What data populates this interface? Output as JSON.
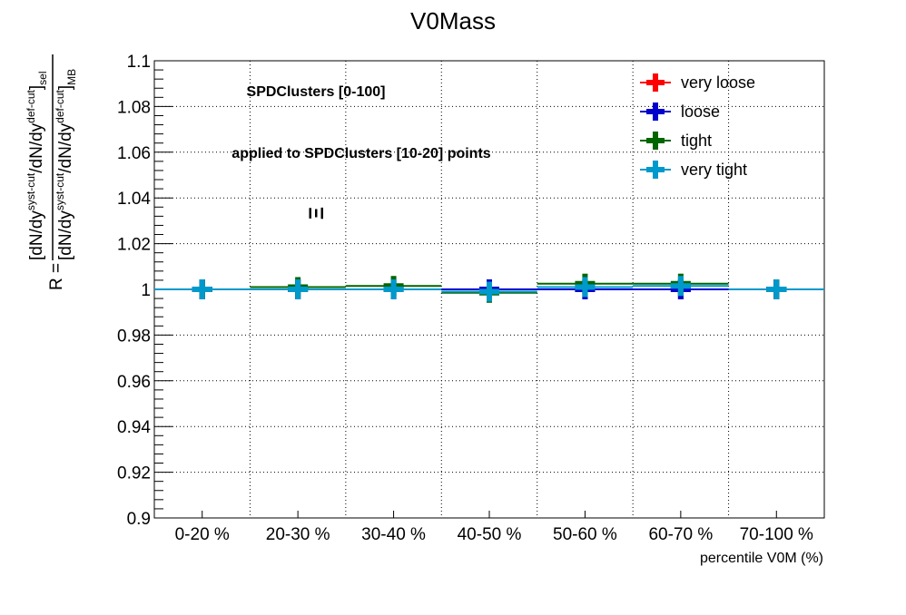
{
  "chart_data": {
    "type": "scatter",
    "title": "V0Mass",
    "xlabel": "percentile V0M (%)",
    "ylabel": {
      "prefix": "R =",
      "numerator": "[dN/dy",
      "numerator_sup1": "syst-cut",
      "numerator_mid": "/dN/dy",
      "numerator_sup2": "def-cut",
      "numerator_end": "]",
      "numerator_sub": "sel",
      "denominator": "[dN/dy",
      "denominator_sup1": "syst-cut",
      "denominator_mid": "/dN/dy",
      "denominator_sup2": "def-cut",
      "denominator_end": "]",
      "denominator_sub": "MB"
    },
    "categories": [
      "0-20 %",
      "20-30 %",
      "30-40 %",
      "40-50 %",
      "50-60 %",
      "60-70 %",
      "70-100 %"
    ],
    "ylim": [
      0.9,
      1.1
    ],
    "yticks": [
      "0.9",
      "0.92",
      "0.94",
      "0.96",
      "0.98",
      "1",
      "1.02",
      "1.04",
      "1.06",
      "1.08",
      "1.1"
    ],
    "grid": true,
    "legend_position": "top-right",
    "annotations": [
      "SPDClusters [0-100]",
      "applied to SPDClusters [10-20] points",
      "Ξ"
    ],
    "series": [
      {
        "name": "very loose",
        "color": "#ff0000",
        "values": [
          1.0,
          1.0,
          1.0,
          1.0,
          1.0,
          1.0,
          1.0
        ],
        "errors": [
          0.001,
          0.002,
          0.002,
          0.002,
          0.003,
          0.003,
          0.001
        ]
      },
      {
        "name": "loose",
        "color": "#0000cc",
        "values": [
          1.0,
          1.0,
          1.0,
          1.0,
          1.0,
          1.0,
          1.0
        ],
        "errors": [
          0.001,
          0.002,
          0.002,
          0.002,
          0.003,
          0.003,
          0.001
        ]
      },
      {
        "name": "tight",
        "color": "#006600",
        "values": [
          1.0,
          1.001,
          1.0015,
          0.9985,
          1.0025,
          1.0025,
          1.0
        ],
        "errors": [
          0.002,
          0.003,
          0.003,
          0.003,
          0.004,
          0.004,
          0.001
        ]
      },
      {
        "name": "very tight",
        "color": "#0099cc",
        "values": [
          1.0,
          1.0,
          1.0,
          0.999,
          1.001,
          1.0015,
          1.0
        ],
        "errors": [
          0.002,
          0.003,
          0.003,
          0.003,
          0.004,
          0.004,
          0.001
        ]
      }
    ]
  }
}
